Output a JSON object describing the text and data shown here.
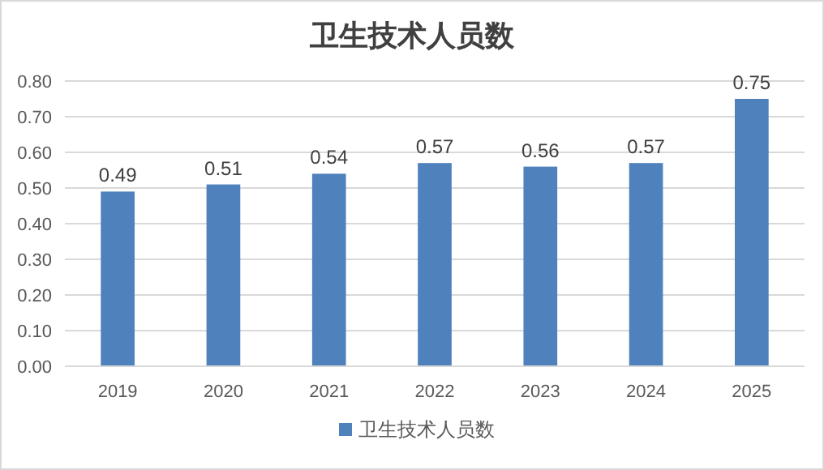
{
  "chart_data": {
    "type": "bar",
    "title": "卫生技术人员数",
    "categories": [
      "2019",
      "2020",
      "2021",
      "2022",
      "2023",
      "2024",
      "2025"
    ],
    "series": [
      {
        "name": "卫生技术人员数",
        "color": "#4f81bd",
        "values": [
          0.49,
          0.51,
          0.54,
          0.57,
          0.56,
          0.57,
          0.75
        ]
      }
    ],
    "ylim": [
      0,
      0.8
    ],
    "yticks": [
      {
        "value": 0,
        "label": "0.00"
      },
      {
        "value": 0.1,
        "label": "0.10"
      },
      {
        "value": 0.2,
        "label": "0.20"
      },
      {
        "value": 0.3,
        "label": "0.30"
      },
      {
        "value": 0.4,
        "label": "0.40"
      },
      {
        "value": 0.5,
        "label": "0.50"
      },
      {
        "value": 0.6,
        "label": "0.60"
      },
      {
        "value": 0.7,
        "label": "0.70"
      },
      {
        "value": 0.8,
        "label": "0.80"
      }
    ],
    "grid": "y",
    "legend": "bottom",
    "data_labels": true
  }
}
